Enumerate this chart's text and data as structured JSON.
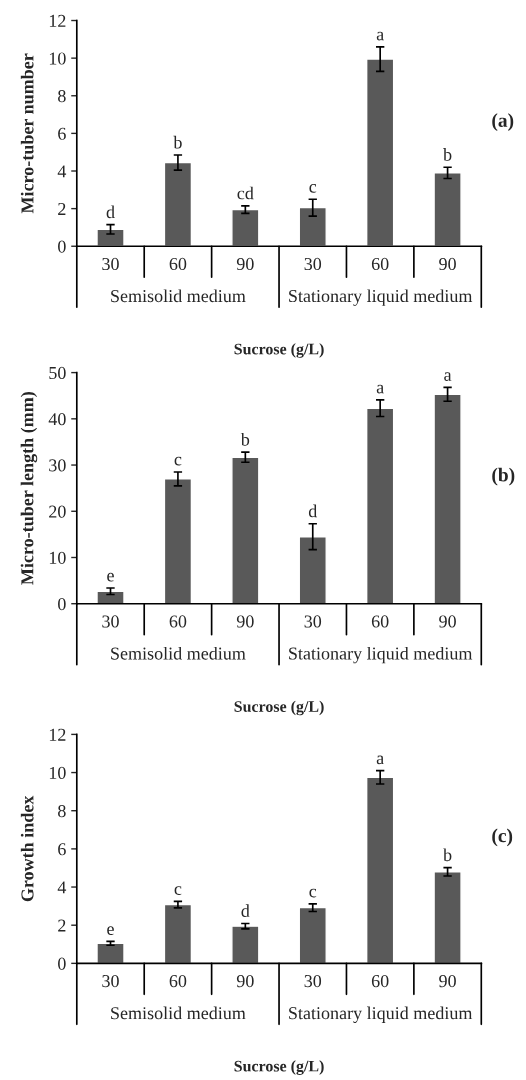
{
  "chart_data": [
    {
      "type": "bar",
      "categories": [
        "30",
        "60",
        "90",
        "30",
        "60",
        "90"
      ],
      "values": [
        0.9,
        4.45,
        1.95,
        2.05,
        9.95,
        3.9
      ],
      "errors": [
        0.25,
        0.4,
        0.2,
        0.45,
        0.65,
        0.3
      ],
      "color": "#595959",
      "ylim": [
        0,
        12
      ],
      "yticks": [
        0,
        2,
        4,
        6,
        8,
        10,
        12
      ],
      "ylabel": "Micro-tuber number",
      "xlabel": "Sucrose (g/L)",
      "grid": false,
      "legend": false,
      "annotations": [
        "d",
        "b",
        "cd",
        "c",
        "a",
        "b",
        "Semisolid medium",
        "Stationary liquid medium",
        "(a)"
      ]
    },
    {
      "type": "bar",
      "categories": [
        "30",
        "60",
        "90",
        "30",
        "60",
        "90"
      ],
      "values": [
        2.7,
        27,
        31.7,
        14.5,
        42.3,
        45.3
      ],
      "errors": [
        0.7,
        1.5,
        1.1,
        2.8,
        1.8,
        1.5
      ],
      "color": "#595959",
      "ylim": [
        0,
        50
      ],
      "yticks": [
        0,
        10,
        20,
        30,
        40,
        50
      ],
      "ylabel": "Micro-tuber length (mm)",
      "xlabel": "Sucrose (g/L)",
      "grid": false,
      "legend": false,
      "annotations": [
        "e",
        "c",
        "b",
        "d",
        "a",
        "a",
        "Semisolid medium",
        "Stationary liquid medium",
        "(b)"
      ]
    },
    {
      "type": "bar",
      "categories": [
        "30",
        "60",
        "90",
        "30",
        "60",
        "90"
      ],
      "values": [
        1.05,
        3.08,
        1.95,
        2.92,
        9.75,
        4.8
      ],
      "errors": [
        0.1,
        0.17,
        0.14,
        0.2,
        0.35,
        0.22
      ],
      "color": "#595959",
      "ylim": [
        0,
        12
      ],
      "yticks": [
        0,
        2,
        4,
        6,
        8,
        10,
        12
      ],
      "ylabel": "Growth index",
      "xlabel": "Sucrose (g/L)",
      "grid": false,
      "legend": false,
      "annotations": [
        "e",
        "c",
        "d",
        "c",
        "a",
        "b",
        "Semisolid medium",
        "Stationary liquid medium",
        "(c)"
      ]
    }
  ]
}
